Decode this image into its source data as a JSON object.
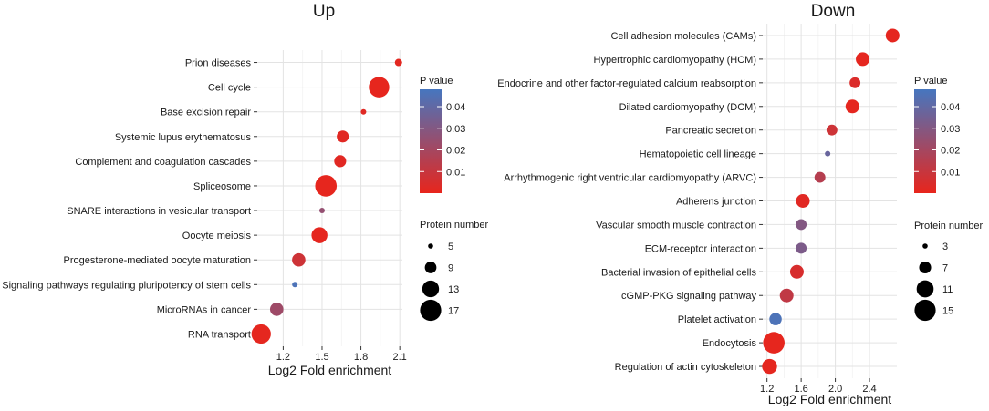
{
  "chart_data": [
    {
      "type": "scatter",
      "title": "Up",
      "xlabel": "Log2 Fold enrichment",
      "ylabel": "",
      "xlim": [
        1.0,
        2.12
      ],
      "xticks": [
        1.2,
        1.5,
        1.8,
        2.1
      ],
      "xtick_labels": [
        "1.2",
        "1.5",
        "1.8",
        "2.1"
      ],
      "categories": [
        "Prion diseases",
        "Cell cycle",
        "Base excision repair",
        "Systemic lupus erythematosus",
        "Complement and coagulation cascades",
        "Spliceosome",
        "SNARE interactions in vesicular transport",
        "Oocyte meiosis",
        "Progesterone-mediated oocyte maturation",
        "Signaling pathways regulating pluripotency of stem cells",
        "MicroRNAs in cancer",
        "RNA transport"
      ],
      "x": [
        2.09,
        1.94,
        1.82,
        1.66,
        1.64,
        1.53,
        1.5,
        1.48,
        1.32,
        1.29,
        1.15,
        1.03
      ],
      "size": [
        6,
        16,
        5,
        9,
        9,
        17,
        5,
        12,
        10,
        5,
        10,
        15
      ],
      "pvalue": [
        0.0015,
        0.0005,
        0.0025,
        0.002,
        0.002,
        0.0005,
        0.025,
        0.0008,
        0.008,
        0.046,
        0.022,
        0.001
      ],
      "color_legend": {
        "title": "P value",
        "ticks": [
          "0.04",
          "0.03",
          "0.02",
          "0.01"
        ],
        "tick_values": [
          0.04,
          0.03,
          0.02,
          0.01
        ],
        "range": [
          0.0,
          0.048
        ],
        "low_color": "#e8251c",
        "high_color": "#4676bf"
      },
      "size_legend": {
        "title": "Protein number",
        "values": [
          5,
          9,
          13,
          17
        ],
        "labels": [
          "5",
          "9",
          "13",
          "17"
        ]
      }
    },
    {
      "type": "scatter",
      "title": "Down",
      "xlabel": "Log2 Fold enrichment",
      "ylabel": "",
      "xlim": [
        1.15,
        2.72
      ],
      "xticks": [
        1.2,
        1.6,
        2.0,
        2.4
      ],
      "xtick_labels": [
        "1.2",
        "1.6",
        "2.0",
        "2.4"
      ],
      "categories": [
        "Cell adhesion molecules (CAMs)",
        "Hypertrophic cardiomyopathy (HCM)",
        "Endocrine and other factor-regulated calcium reabsorption",
        "Dilated cardiomyopathy (DCM)",
        "Pancreatic secretion",
        "Hematopoietic cell lineage",
        "Arrhythmogenic right ventricular cardiomyopathy (ARVC)",
        "Adherens junction",
        "Vascular smooth muscle contraction",
        "ECM-receptor interaction",
        "Bacterial invasion of epithelial cells",
        "cGMP-PKG signaling pathway",
        "Platelet activation",
        "Endocytosis",
        "Regulation of actin cytoskeleton"
      ],
      "x": [
        2.67,
        2.32,
        2.23,
        2.2,
        1.96,
        1.91,
        1.82,
        1.62,
        1.6,
        1.6,
        1.55,
        1.43,
        1.3,
        1.28,
        1.23
      ],
      "size": [
        8,
        8,
        6,
        8,
        6,
        3,
        6,
        8,
        6,
        6,
        8,
        8,
        7,
        15,
        9
      ],
      "pvalue": [
        0.0008,
        0.0008,
        0.004,
        0.0008,
        0.008,
        0.038,
        0.015,
        0.002,
        0.03,
        0.032,
        0.005,
        0.012,
        0.046,
        0.0005,
        0.001
      ],
      "color_legend": {
        "title": "P value",
        "ticks": [
          "0.04",
          "0.03",
          "0.02",
          "0.01"
        ],
        "tick_values": [
          0.04,
          0.03,
          0.02,
          0.01
        ],
        "range": [
          0.0,
          0.048
        ],
        "low_color": "#e8251c",
        "high_color": "#4676bf"
      },
      "size_legend": {
        "title": "Protein number",
        "values": [
          3,
          7,
          11,
          15
        ],
        "labels": [
          "3",
          "7",
          "11",
          "15"
        ]
      }
    }
  ]
}
